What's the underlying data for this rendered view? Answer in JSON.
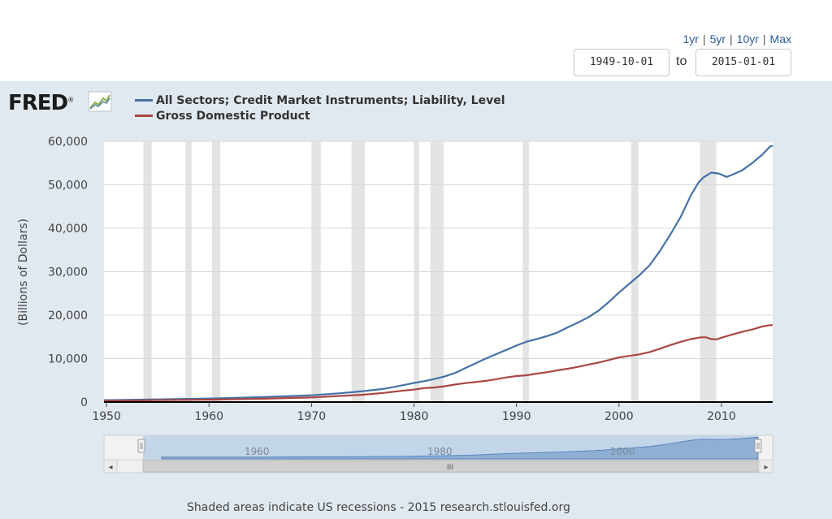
{
  "range_links": [
    "1yr",
    "5yr",
    "10yr",
    "Max"
  ],
  "date_range": {
    "start": "1949-10-01",
    "to_label": "to",
    "end": "2015-01-01"
  },
  "logo": {
    "text": "FRED",
    "registered": "®"
  },
  "footer_note": "Shaded areas indicate US recessions - 2015 research.stlouisfed.org",
  "navigator": {
    "year_labels": [
      "1960",
      "1980",
      "2000"
    ],
    "scroll_thumb": "III",
    "left_arrow": "◂",
    "right_arrow": "▸"
  },
  "colors": {
    "series_debt": "#4572a7",
    "series_gdp": "#aa4643",
    "panel_bg": "#e1e9f0",
    "recession": "#e3e3e3"
  },
  "chart_data": {
    "type": "line",
    "ylabel": "(Billions of Dollars)",
    "xlim": [
      1949.75,
      2015.0
    ],
    "ylim": [
      0,
      60000
    ],
    "x_ticks": [
      1950,
      1960,
      1970,
      1980,
      1990,
      2000,
      2010
    ],
    "y_ticks": [
      0,
      10000,
      20000,
      30000,
      40000,
      50000,
      60000
    ],
    "y_tick_labels": [
      "0",
      "10,000",
      "20,000",
      "30,000",
      "40,000",
      "50,000",
      "60,000"
    ],
    "recessions": [
      [
        1953.6,
        1954.4
      ],
      [
        1957.7,
        1958.3
      ],
      [
        1960.3,
        1961.1
      ],
      [
        1970.0,
        1970.9
      ],
      [
        1973.9,
        1975.2
      ],
      [
        1980.0,
        1980.5
      ],
      [
        1981.6,
        1982.9
      ],
      [
        1990.6,
        1991.2
      ],
      [
        2001.2,
        2001.9
      ],
      [
        2007.9,
        2009.5
      ]
    ],
    "series": [
      {
        "name": "All Sectors; Credit Market Instruments; Liability, Level",
        "color": "#4572a7",
        "points": [
          [
            1949.75,
            430
          ],
          [
            1955,
            620
          ],
          [
            1960,
            800
          ],
          [
            1965,
            1120
          ],
          [
            1970,
            1550
          ],
          [
            1973,
            2050
          ],
          [
            1975,
            2500
          ],
          [
            1977,
            3000
          ],
          [
            1979,
            3900
          ],
          [
            1980,
            4400
          ],
          [
            1981,
            4800
          ],
          [
            1982,
            5300
          ],
          [
            1983,
            5900
          ],
          [
            1984,
            6700
          ],
          [
            1985,
            7800
          ],
          [
            1986,
            8900
          ],
          [
            1987,
            10000
          ],
          [
            1988,
            11000
          ],
          [
            1989,
            12000
          ],
          [
            1990,
            13000
          ],
          [
            1991,
            13900
          ],
          [
            1992,
            14500
          ],
          [
            1993,
            15200
          ],
          [
            1994,
            16000
          ],
          [
            1995,
            17200
          ],
          [
            1996,
            18300
          ],
          [
            1997,
            19500
          ],
          [
            1998,
            21000
          ],
          [
            1999,
            23000
          ],
          [
            2000,
            25200
          ],
          [
            2001,
            27200
          ],
          [
            2002,
            29200
          ],
          [
            2003,
            31500
          ],
          [
            2004,
            34800
          ],
          [
            2005,
            38500
          ],
          [
            2006,
            42500
          ],
          [
            2007,
            47500
          ],
          [
            2007.75,
            50500
          ],
          [
            2008.25,
            51700
          ],
          [
            2009,
            52800
          ],
          [
            2009.75,
            52600
          ],
          [
            2010.5,
            51800
          ],
          [
            2011.25,
            52500
          ],
          [
            2012,
            53300
          ],
          [
            2013,
            55000
          ],
          [
            2014,
            57000
          ],
          [
            2014.75,
            58800
          ],
          [
            2015.0,
            59000
          ]
        ]
      },
      {
        "name": "Gross Domestic Product",
        "color": "#aa4643",
        "points": [
          [
            1949.75,
            272
          ],
          [
            1955,
            426
          ],
          [
            1960,
            543
          ],
          [
            1965,
            743
          ],
          [
            1970,
            1073
          ],
          [
            1973,
            1425
          ],
          [
            1975,
            1688
          ],
          [
            1977,
            2086
          ],
          [
            1979,
            2632
          ],
          [
            1980,
            2863
          ],
          [
            1981,
            3211
          ],
          [
            1982,
            3345
          ],
          [
            1983,
            3638
          ],
          [
            1984,
            4041
          ],
          [
            1985,
            4347
          ],
          [
            1986,
            4590
          ],
          [
            1987,
            4870
          ],
          [
            1988,
            5253
          ],
          [
            1989,
            5658
          ],
          [
            1990,
            5980
          ],
          [
            1991,
            6174
          ],
          [
            1992,
            6539
          ],
          [
            1993,
            6879
          ],
          [
            1994,
            7309
          ],
          [
            1995,
            7664
          ],
          [
            1996,
            8100
          ],
          [
            1997,
            8609
          ],
          [
            1998,
            9089
          ],
          [
            1999,
            9661
          ],
          [
            2000,
            10285
          ],
          [
            2001,
            10622
          ],
          [
            2002,
            10978
          ],
          [
            2003,
            11511
          ],
          [
            2004,
            12275
          ],
          [
            2005,
            13094
          ],
          [
            2006,
            13856
          ],
          [
            2007,
            14478
          ],
          [
            2008,
            14900
          ],
          [
            2008.5,
            14900
          ],
          [
            2009,
            14500
          ],
          [
            2009.5,
            14400
          ],
          [
            2010,
            14800
          ],
          [
            2011,
            15500
          ],
          [
            2012,
            16150
          ],
          [
            2013,
            16700
          ],
          [
            2014,
            17400
          ],
          [
            2014.75,
            17700
          ],
          [
            2015.0,
            17700
          ]
        ]
      }
    ]
  }
}
